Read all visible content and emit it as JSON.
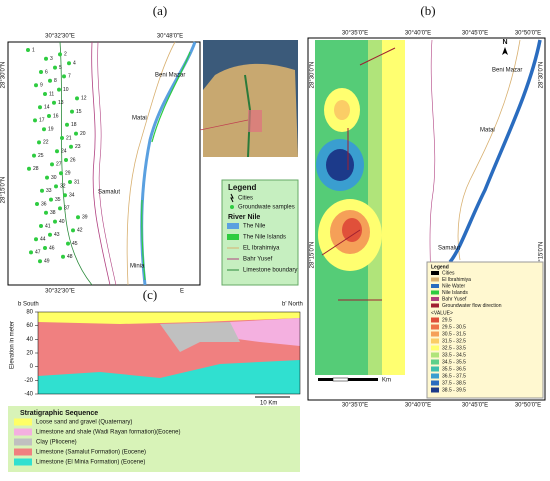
{
  "panel_a": {
    "label": "(a)",
    "coords": {
      "top_left": "30°32'30\"E",
      "top_right": "30°48'0\"E",
      "left_top": "28°30'0\"N",
      "left_bottom": "28°15'0\"N",
      "bottom_left": "30°32'30\"E",
      "bottom_right": "E"
    },
    "cities": [
      "Beni Mazar",
      "Matai",
      "Samalut",
      "Minia"
    ],
    "samples": [
      "1",
      "2",
      "3",
      "4",
      "5",
      "6",
      "7",
      "8",
      "9",
      "10",
      "11",
      "12",
      "13",
      "14",
      "15",
      "16",
      "17",
      "18",
      "19",
      "20",
      "21",
      "22",
      "23",
      "24",
      "25",
      "26",
      "27",
      "28",
      "29",
      "30",
      "31",
      "32",
      "33",
      "34",
      "35",
      "36",
      "37",
      "38",
      "39",
      "40",
      "41",
      "42",
      "43",
      "44",
      "45",
      "46",
      "47",
      "48",
      "49"
    ],
    "legend": {
      "title": "Legend",
      "items": [
        "Cities",
        "Groundwate samples"
      ],
      "section": "River Nile",
      "lines": [
        {
          "name": "The Nile",
          "color": "#5aa0e0"
        },
        {
          "name": "The Nile Islands",
          "color": "#2ecc40"
        },
        {
          "name": "EL Ibrahimiya",
          "color": "#d8b070"
        },
        {
          "name": "Bahr Yusef",
          "color": "#b04080"
        },
        {
          "name": "Limestone boundary",
          "color": "#2a8a3a"
        }
      ]
    }
  },
  "panel_b": {
    "label": "(b)",
    "top_coords": [
      "30°35'0\"E",
      "30°40'0\"E",
      "30°45'0\"E",
      "30°50'0\"E"
    ],
    "bottom_coords": [
      "30°35'0\"E",
      "30°40'0\"E",
      "30°45'0\"E",
      "30°50'0\"E"
    ],
    "left_coords": [
      "28°30'0\"N",
      "28°15'0\"N"
    ],
    "right_coords": [
      "28°30'0\"N",
      "28°15'0\"N"
    ],
    "north": "N",
    "cities": [
      "Beni Mazar",
      "Matai",
      "Samalut"
    ],
    "scale": "Km",
    "legend": {
      "title": "Legend",
      "items": [
        "Cities",
        "El Ibrahimiya",
        "Nile Water",
        "Nile Islands",
        "Bahr Yusef",
        "Groundwater flow direction"
      ],
      "value_title": "<VALUE>",
      "classes": [
        {
          "label": "29.5",
          "color": "#e0503a"
        },
        {
          "label": "29.5 - 30.5",
          "color": "#ee7448"
        },
        {
          "label": "30.5 - 31.5",
          "color": "#f5a058"
        },
        {
          "label": "31.5 - 32.5",
          "color": "#fbcd66"
        },
        {
          "label": "32.5 - 33.5",
          "color": "#ffff70"
        },
        {
          "label": "33.5 - 34.5",
          "color": "#b0e47a"
        },
        {
          "label": "34.5 - 35.5",
          "color": "#5ed08a"
        },
        {
          "label": "35.5 - 36.5",
          "color": "#3ebfae"
        },
        {
          "label": "36.5 - 37.5",
          "color": "#3a9ed0"
        },
        {
          "label": "37.5 - 38.5",
          "color": "#2a6cbf"
        },
        {
          "label": "38.5 - 39.5",
          "color": "#1c3a8a"
        }
      ]
    }
  },
  "panel_c": {
    "label": "(c)",
    "left_end": "b South",
    "right_end": "b' North",
    "y_label": "Elevation in meter",
    "ylim": [
      -40,
      80
    ],
    "yticks": [
      80,
      60,
      40,
      20,
      0,
      -20,
      -40
    ],
    "scale": "10 Km",
    "legend_title": "Stratigraphic Sequence",
    "units": [
      {
        "name": "Loose sand and gravel (Quaternary)",
        "color": "#ffff66"
      },
      {
        "name": "Limestone and shale (Wadi Rayan formation)(Eocene)",
        "color": "#f4b0e0"
      },
      {
        "name": "Clay (Pliocene)",
        "color": "#c0c0c0"
      },
      {
        "name": "Limestone (Samalut Formation) (Eocene)",
        "color": "#f08080"
      },
      {
        "name": "Limestone (El Minia Formation) (Eocene)",
        "color": "#30e0d0"
      }
    ]
  }
}
